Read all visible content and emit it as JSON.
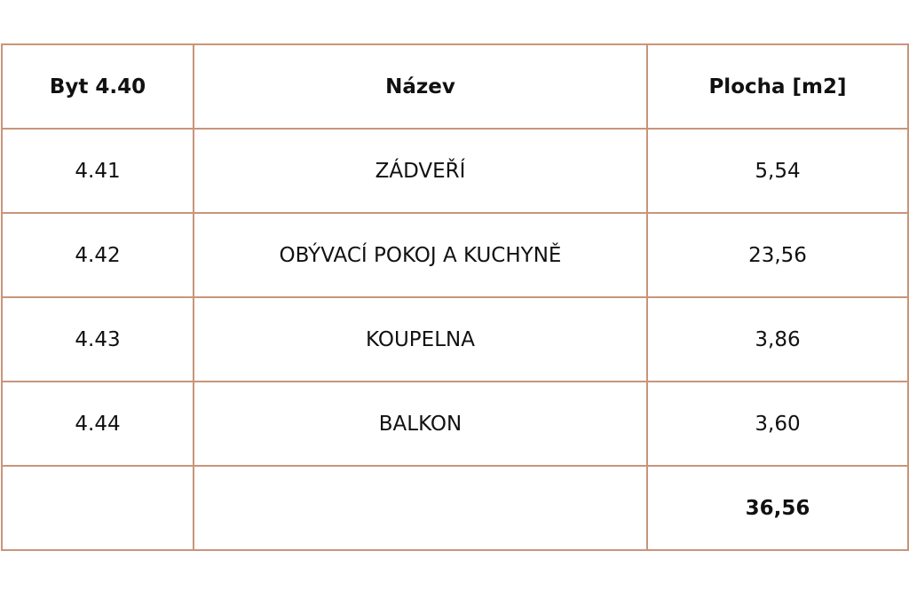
{
  "table": {
    "headers": [
      "Byt 4.40",
      "Název",
      "Plocha [m2]"
    ],
    "rows": [
      [
        "4.41",
        "ZÁDVEŘÍ",
        "5,54"
      ],
      [
        "4.42",
        "OBÝVACÍ POKOJ A KUCHYNĚ",
        "23,56"
      ],
      [
        "4.43",
        "KOUPELNA",
        "3,86"
      ],
      [
        "4.44",
        "BALKON",
        "3,60"
      ]
    ],
    "total": [
      "",
      "",
      "36,56"
    ]
  },
  "colors": {
    "border": "#c8957a"
  }
}
